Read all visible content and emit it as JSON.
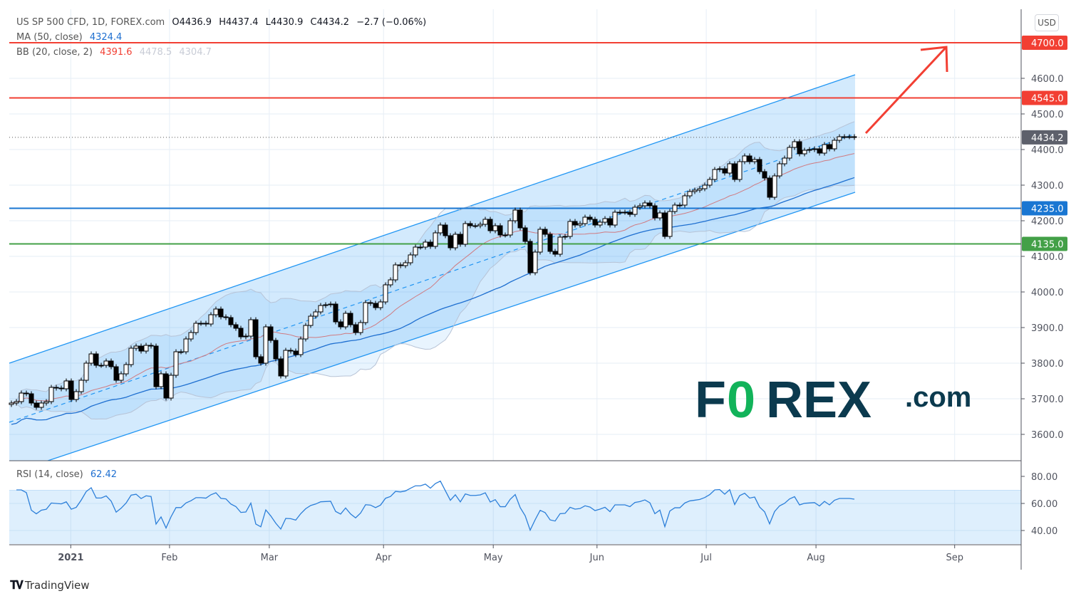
{
  "header": {
    "symbol": "US SP 500 CFD, 1D, FOREX.com",
    "open": "O4436.9",
    "high": "H4437.4",
    "low": "L4430.9",
    "close": "C4434.2",
    "change": "−2.7 (−0.06%)"
  },
  "indicators": {
    "ma_label": "MA (50, close)",
    "ma_value": "4324.4",
    "bb_label": "BB (20, close, 2)",
    "bb_basis": "4391.6",
    "bb_upper": "4478.5",
    "bb_lower": "4304.7",
    "rsi_label": "RSI (14, close)",
    "rsi_value": "62.42"
  },
  "currency": "USD",
  "logo": {
    "forex_f": "F",
    "forex_o": "0",
    "forex_rest": "REX",
    "forex_com": ".com",
    "tradingview": "TradingView"
  },
  "colors": {
    "up": "#ffffff",
    "down": "#000000",
    "channel": "#2196f3",
    "ma50": "#1e6fd0",
    "bb_basis": "#d07a80",
    "bb_band": "#b7c3d6",
    "resistance": "#f23f33",
    "support_blue": "#1976d2",
    "support_green": "#43a047",
    "last_price": "#5d606b",
    "forex_dark": "#0b3a4e",
    "forex_green": "#12b35a"
  },
  "chart_data": {
    "type": "candlestick",
    "interval": "1D",
    "price_axis": {
      "range": [
        3540,
        4800
      ],
      "ticks": [
        "3600.0",
        "3700.0",
        "3800.0",
        "3900.0",
        "4000.0",
        "4100.0",
        "4200.0",
        "4300.0",
        "4400.0",
        "4500.0",
        "4600.0"
      ]
    },
    "time_axis": {
      "ticks": [
        "2021",
        "Feb",
        "Mar",
        "Apr",
        "May",
        "Jun",
        "Jul",
        "Aug",
        "Sep"
      ]
    },
    "close": [
      3688,
      3692,
      3716,
      3714,
      3688,
      3676,
      3688,
      3692,
      3732,
      3730,
      3728,
      3750,
      3698,
      3720,
      3752,
      3800,
      3826,
      3794,
      3794,
      3806,
      3790,
      3752,
      3770,
      3796,
      3842,
      3848,
      3834,
      3850,
      3848,
      3734,
      3770,
      3702,
      3766,
      3832,
      3832,
      3868,
      3886,
      3912,
      3912,
      3910,
      3936,
      3952,
      3930,
      3928,
      3908,
      3898,
      3874,
      3876,
      3922,
      3818,
      3800,
      3902,
      3864,
      3812,
      3764,
      3836,
      3834,
      3824,
      3868,
      3906,
      3932,
      3944,
      3962,
      3964,
      3966,
      3916,
      3902,
      3940,
      3908,
      3886,
      3914,
      3970,
      3968,
      3956,
      3972,
      4020,
      4034,
      4076,
      4074,
      4082,
      4104,
      4126,
      4126,
      4140,
      4128,
      4166,
      4188,
      4158,
      4124,
      4162,
      4134,
      4192,
      4186,
      4186,
      4190,
      4204,
      4172,
      4186,
      4160,
      4160,
      4200,
      4230,
      4180,
      4142,
      4054,
      4112,
      4176,
      4162,
      4114,
      4106,
      4154,
      4156,
      4198,
      4188,
      4192,
      4210,
      4204,
      4188,
      4196,
      4206,
      4188,
      4224,
      4224,
      4224,
      4218,
      4238,
      4242,
      4250,
      4242,
      4208,
      4222,
      4156,
      4226,
      4244,
      4244,
      4270,
      4282,
      4286,
      4290,
      4300,
      4316,
      4344,
      4346,
      4334,
      4360,
      4316,
      4366,
      4382,
      4366,
      4372,
      4338,
      4320,
      4266,
      4326,
      4360,
      4376,
      4406,
      4422,
      4388,
      4398,
      4400,
      4402,
      4390,
      4414,
      4402,
      4426,
      4436,
      4436,
      4436,
      4434.2
    ],
    "last_price": {
      "value": 4434.2,
      "label": "4434.2"
    },
    "horizontal_levels": [
      {
        "value": 4700,
        "label": "4700.0",
        "color": "#f23f33"
      },
      {
        "value": 4545,
        "label": "4545.0",
        "color": "#f23f33"
      },
      {
        "value": 4235,
        "label": "4235.0",
        "color": "#1976d2"
      },
      {
        "value": 4135,
        "label": "4135.0",
        "color": "#43a047"
      }
    ],
    "channel": {
      "upper": [
        3800,
        4610
      ],
      "middle": [
        3634,
        4444
      ],
      "lower": [
        3490,
        4280
      ]
    },
    "arrow": {
      "from_price": 4446,
      "to_price": 4688,
      "color": "#f23f33"
    },
    "rsi_axis": {
      "ticks": [
        "40.00",
        "60.00",
        "80.00"
      ],
      "band": [
        30,
        70
      ]
    }
  }
}
